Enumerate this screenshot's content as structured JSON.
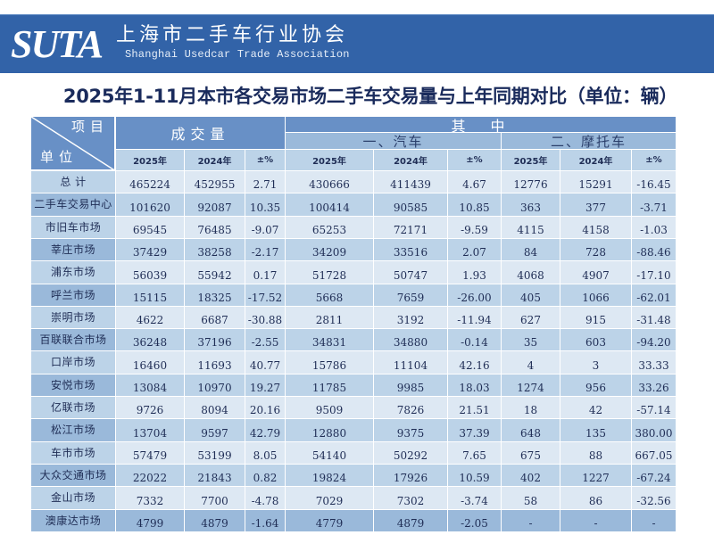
{
  "banner": {
    "logo": "SUTA",
    "org_name_cn": "上海市二手车行业协会",
    "org_name_en": "Shanghai Usedcar Trade Association",
    "bg_color": "#3263a8"
  },
  "page_title": "2025年1-11月本市各交易市场二手车交易量与上年同期对比（单位：辆）",
  "table": {
    "corner_top": "项目",
    "corner_bottom": "单位",
    "group_total": "成交量",
    "group_of_which": "其　中",
    "subgroup_car": "一、汽车",
    "subgroup_moto": "二、摩托车",
    "year_headers": [
      "2025年",
      "2024年",
      "±%",
      "2025年",
      "2024年",
      "±%",
      "2025年",
      "2024年",
      "±%"
    ],
    "rows": [
      {
        "label": "总 计",
        "values": [
          "465224",
          "452955",
          "2.71",
          "430666",
          "411439",
          "4.67",
          "12776",
          "15291",
          "-16.45"
        ]
      },
      {
        "label": "二手车交易中心",
        "values": [
          "101620",
          "92087",
          "10.35",
          "100414",
          "90585",
          "10.85",
          "363",
          "377",
          "-3.71"
        ]
      },
      {
        "label": "市旧车市场",
        "values": [
          "69545",
          "76485",
          "-9.07",
          "65253",
          "72171",
          "-9.59",
          "4115",
          "4158",
          "-1.03"
        ]
      },
      {
        "label": "莘庄市场",
        "values": [
          "37429",
          "38258",
          "-2.17",
          "34209",
          "33516",
          "2.07",
          "84",
          "728",
          "-88.46"
        ]
      },
      {
        "label": "浦东市场",
        "values": [
          "56039",
          "55942",
          "0.17",
          "51728",
          "50747",
          "1.93",
          "4068",
          "4907",
          "-17.10"
        ]
      },
      {
        "label": "呼兰市场",
        "values": [
          "15115",
          "18325",
          "-17.52",
          "5668",
          "7659",
          "-26.00",
          "405",
          "1066",
          "-62.01"
        ]
      },
      {
        "label": "崇明市场",
        "values": [
          "4622",
          "6687",
          "-30.88",
          "2811",
          "3192",
          "-11.94",
          "627",
          "915",
          "-31.48"
        ]
      },
      {
        "label": "百联联合市场",
        "values": [
          "36248",
          "37196",
          "-2.55",
          "34831",
          "34880",
          "-0.14",
          "35",
          "603",
          "-94.20"
        ]
      },
      {
        "label": "口岸市场",
        "values": [
          "16460",
          "11693",
          "40.77",
          "15786",
          "11104",
          "42.16",
          "4",
          "3",
          "33.33"
        ]
      },
      {
        "label": "安悦市场",
        "values": [
          "13084",
          "10970",
          "19.27",
          "11785",
          "9985",
          "18.03",
          "1274",
          "956",
          "33.26"
        ]
      },
      {
        "label": "亿联市场",
        "values": [
          "9726",
          "8094",
          "20.16",
          "9509",
          "7826",
          "21.51",
          "18",
          "42",
          "-57.14"
        ]
      },
      {
        "label": "松江市场",
        "values": [
          "13704",
          "9597",
          "42.79",
          "12880",
          "9375",
          "37.39",
          "648",
          "135",
          "380.00"
        ]
      },
      {
        "label": "车市市场",
        "values": [
          "57479",
          "53199",
          "8.05",
          "54140",
          "50292",
          "7.65",
          "675",
          "88",
          "667.05"
        ]
      },
      {
        "label": "大众交通市场",
        "values": [
          "22022",
          "21843",
          "0.82",
          "19824",
          "17926",
          "10.59",
          "402",
          "1227",
          "-67.24"
        ]
      },
      {
        "label": "金山市场",
        "values": [
          "7332",
          "7700",
          "-4.78",
          "7029",
          "7302",
          "-3.74",
          "58",
          "86",
          "-32.56"
        ]
      },
      {
        "label": "澳康达市场",
        "values": [
          "4799",
          "4879",
          "-1.64",
          "4779",
          "4879",
          "-2.05",
          "-",
          "-",
          "-"
        ]
      }
    ]
  },
  "colors": {
    "header_dark": "#6890c6",
    "header_mid": "#9ab9da",
    "header_light": "#bcd3e8",
    "row_light": "#dde8f3",
    "text": "#1f2d55"
  }
}
